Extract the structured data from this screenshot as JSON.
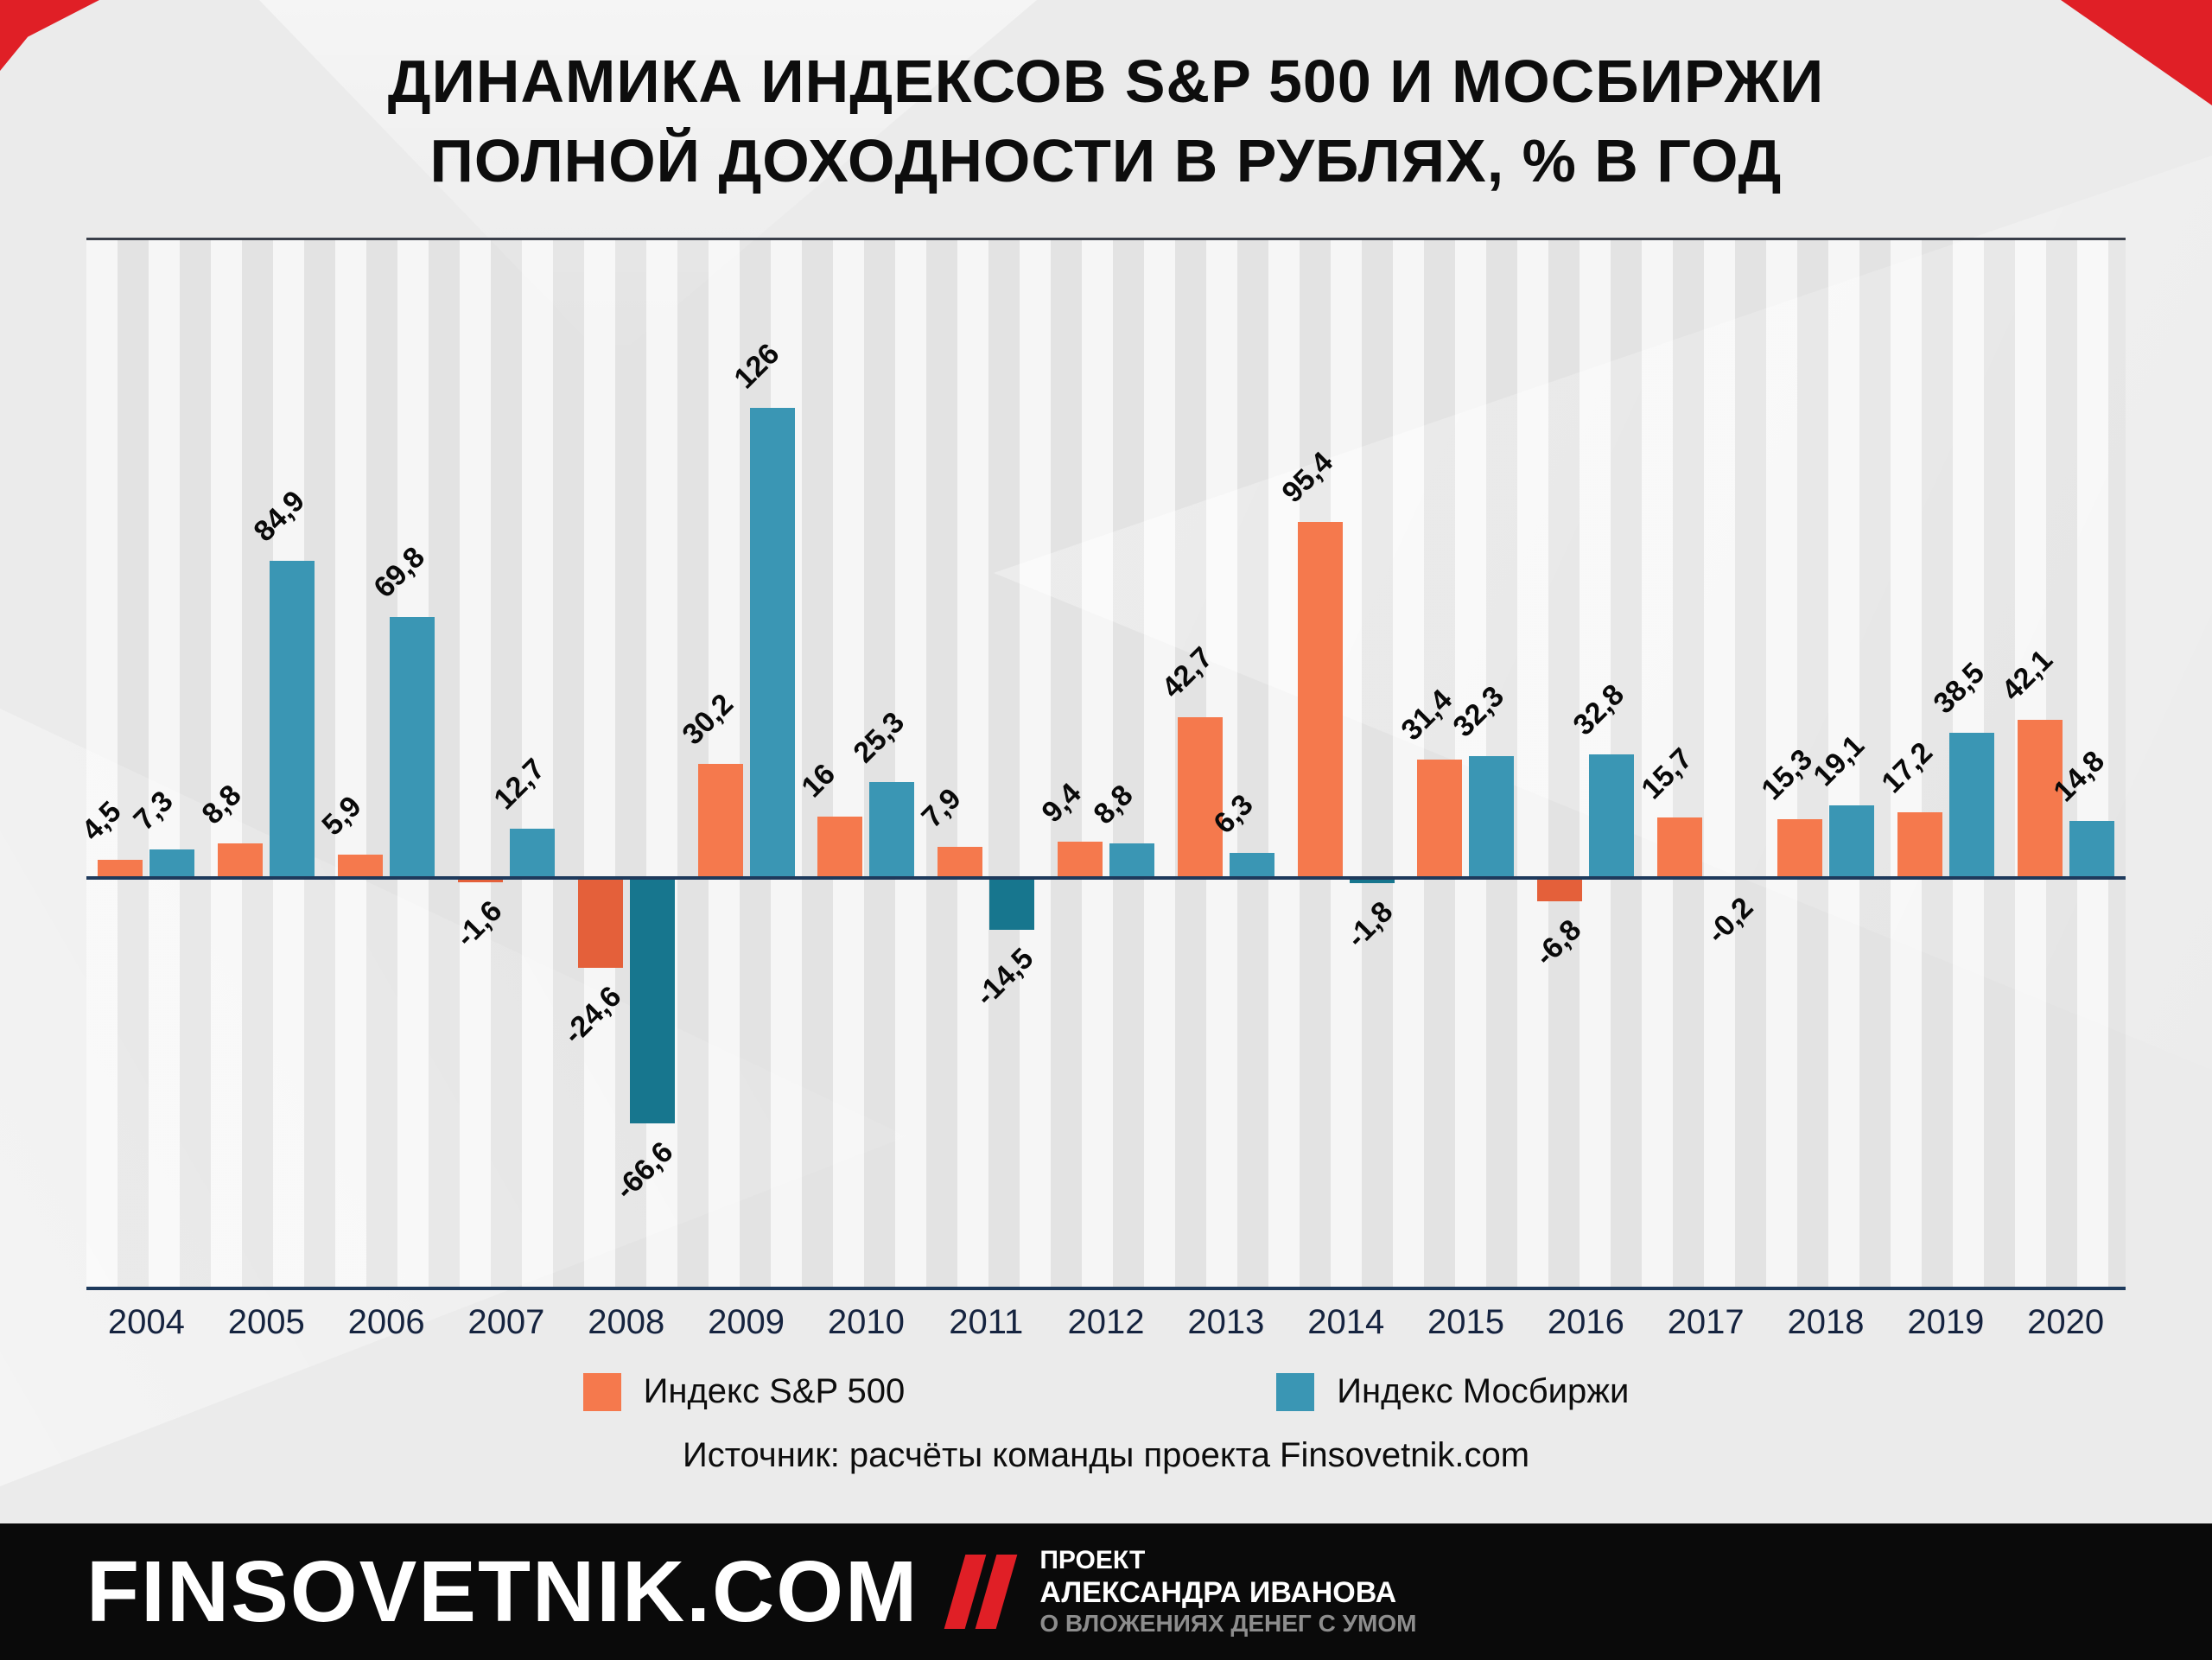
{
  "title": {
    "line1": "ДИНАМИКА ИНДЕКСОВ S&P 500 И МОСБИРЖИ",
    "line2": "ПОЛНОЙ ДОХОДНОСТИ В РУБЛЯХ, % В ГОД"
  },
  "chart_data": {
    "type": "bar",
    "title": "Динамика индексов S&P 500 и Мосбиржи полной доходности в рублях, % в год",
    "xlabel": "",
    "ylabel": "% в год",
    "ylim": [
      -80,
      140
    ],
    "grid": false,
    "legend_position": "bottom",
    "categories": [
      "2004",
      "2005",
      "2006",
      "2007",
      "2008",
      "2009",
      "2010",
      "2011",
      "2012",
      "2013",
      "2014",
      "2015",
      "2016",
      "2017",
      "2018",
      "2019",
      "2020"
    ],
    "series": [
      {
        "name": "Индекс S&P 500",
        "color": "#f5794d",
        "negative_color": "#e4603a",
        "values": [
          4.5,
          8.8,
          5.9,
          -1.6,
          -24.6,
          30.2,
          16,
          7.9,
          9.4,
          42.7,
          95.4,
          31.4,
          -6.8,
          15.7,
          15.3,
          17.2,
          42.1
        ],
        "labels": [
          "4,5",
          "8,8",
          "5,9",
          "-1,6",
          "-24,6",
          "30,2",
          "16",
          "7,9",
          "9,4",
          "42,7",
          "95,4",
          "31,4",
          "-6,8",
          "15,7",
          "15,3",
          "17,2",
          "42,1"
        ]
      },
      {
        "name": "Индекс Мосбиржи",
        "color": "#3a96b4",
        "negative_color": "#17768e",
        "values": [
          7.3,
          84.9,
          69.8,
          12.7,
          -66.6,
          126,
          25.3,
          -14.5,
          8.8,
          6.3,
          -1.8,
          32.3,
          32.8,
          -0.2,
          19.1,
          38.5,
          14.8
        ],
        "labels": [
          "7,3",
          "84,9",
          "69,8",
          "12,7",
          "-66,6",
          "126",
          "25,3",
          "-14,5",
          "8,8",
          "6,3",
          "-1,8",
          "32,3",
          "32,8",
          "-0,2",
          "19,1",
          "38,5",
          "14,8"
        ]
      }
    ]
  },
  "legend": [
    {
      "label": "Индекс S&P 500",
      "color": "#f5794d"
    },
    {
      "label": "Индекс Мосбиржи",
      "color": "#3a96b4"
    }
  ],
  "source": "Источник: расчёты команды проекта Finsovetnik.com",
  "footer": {
    "brand": "FINSOVETNIK.COM",
    "project_line1": "ПРОЕКТ",
    "project_line2": "АЛЕКСАНДРА ИВАНОВА",
    "project_line3": "О ВЛОЖЕНИЯХ ДЕНЕГ С УМОМ"
  }
}
